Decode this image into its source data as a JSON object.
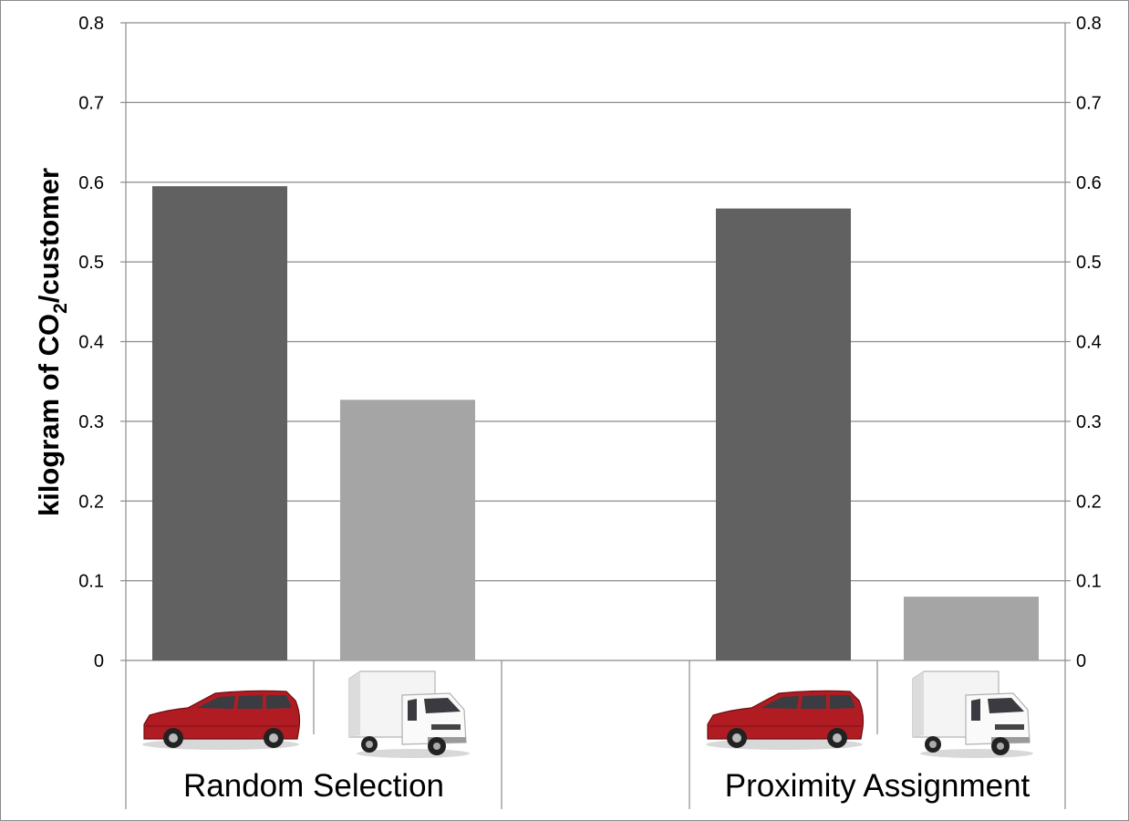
{
  "chart_data": {
    "type": "bar",
    "ylabel_parts": {
      "pre": "kilogram of CO",
      "sub": "2",
      "post": "/customer"
    },
    "ylim": [
      0,
      0.8
    ],
    "yticks": [
      "0",
      "0.1",
      "0.2",
      "0.3",
      "0.4",
      "0.5",
      "0.6",
      "0.7",
      "0.8"
    ],
    "grid": true,
    "secondary_axis": "right",
    "groups": [
      {
        "label": "Random Selection",
        "slot": 0
      },
      {
        "label": "Proximity Assignment",
        "slot": 3
      }
    ],
    "bars": [
      {
        "slot": 0,
        "vehicle": "car",
        "value": 0.595,
        "color": "#616161",
        "icon": "red-minivan-icon"
      },
      {
        "slot": 1,
        "vehicle": "truck",
        "value": 0.327,
        "color": "#a5a5a5",
        "icon": "box-truck-icon"
      },
      {
        "slot": 3,
        "vehicle": "car",
        "value": 0.567,
        "color": "#616161",
        "icon": "red-minivan-icon"
      },
      {
        "slot": 4,
        "vehicle": "truck",
        "value": 0.08,
        "color": "#a5a5a5",
        "icon": "box-truck-icon"
      }
    ],
    "slots": 5
  }
}
